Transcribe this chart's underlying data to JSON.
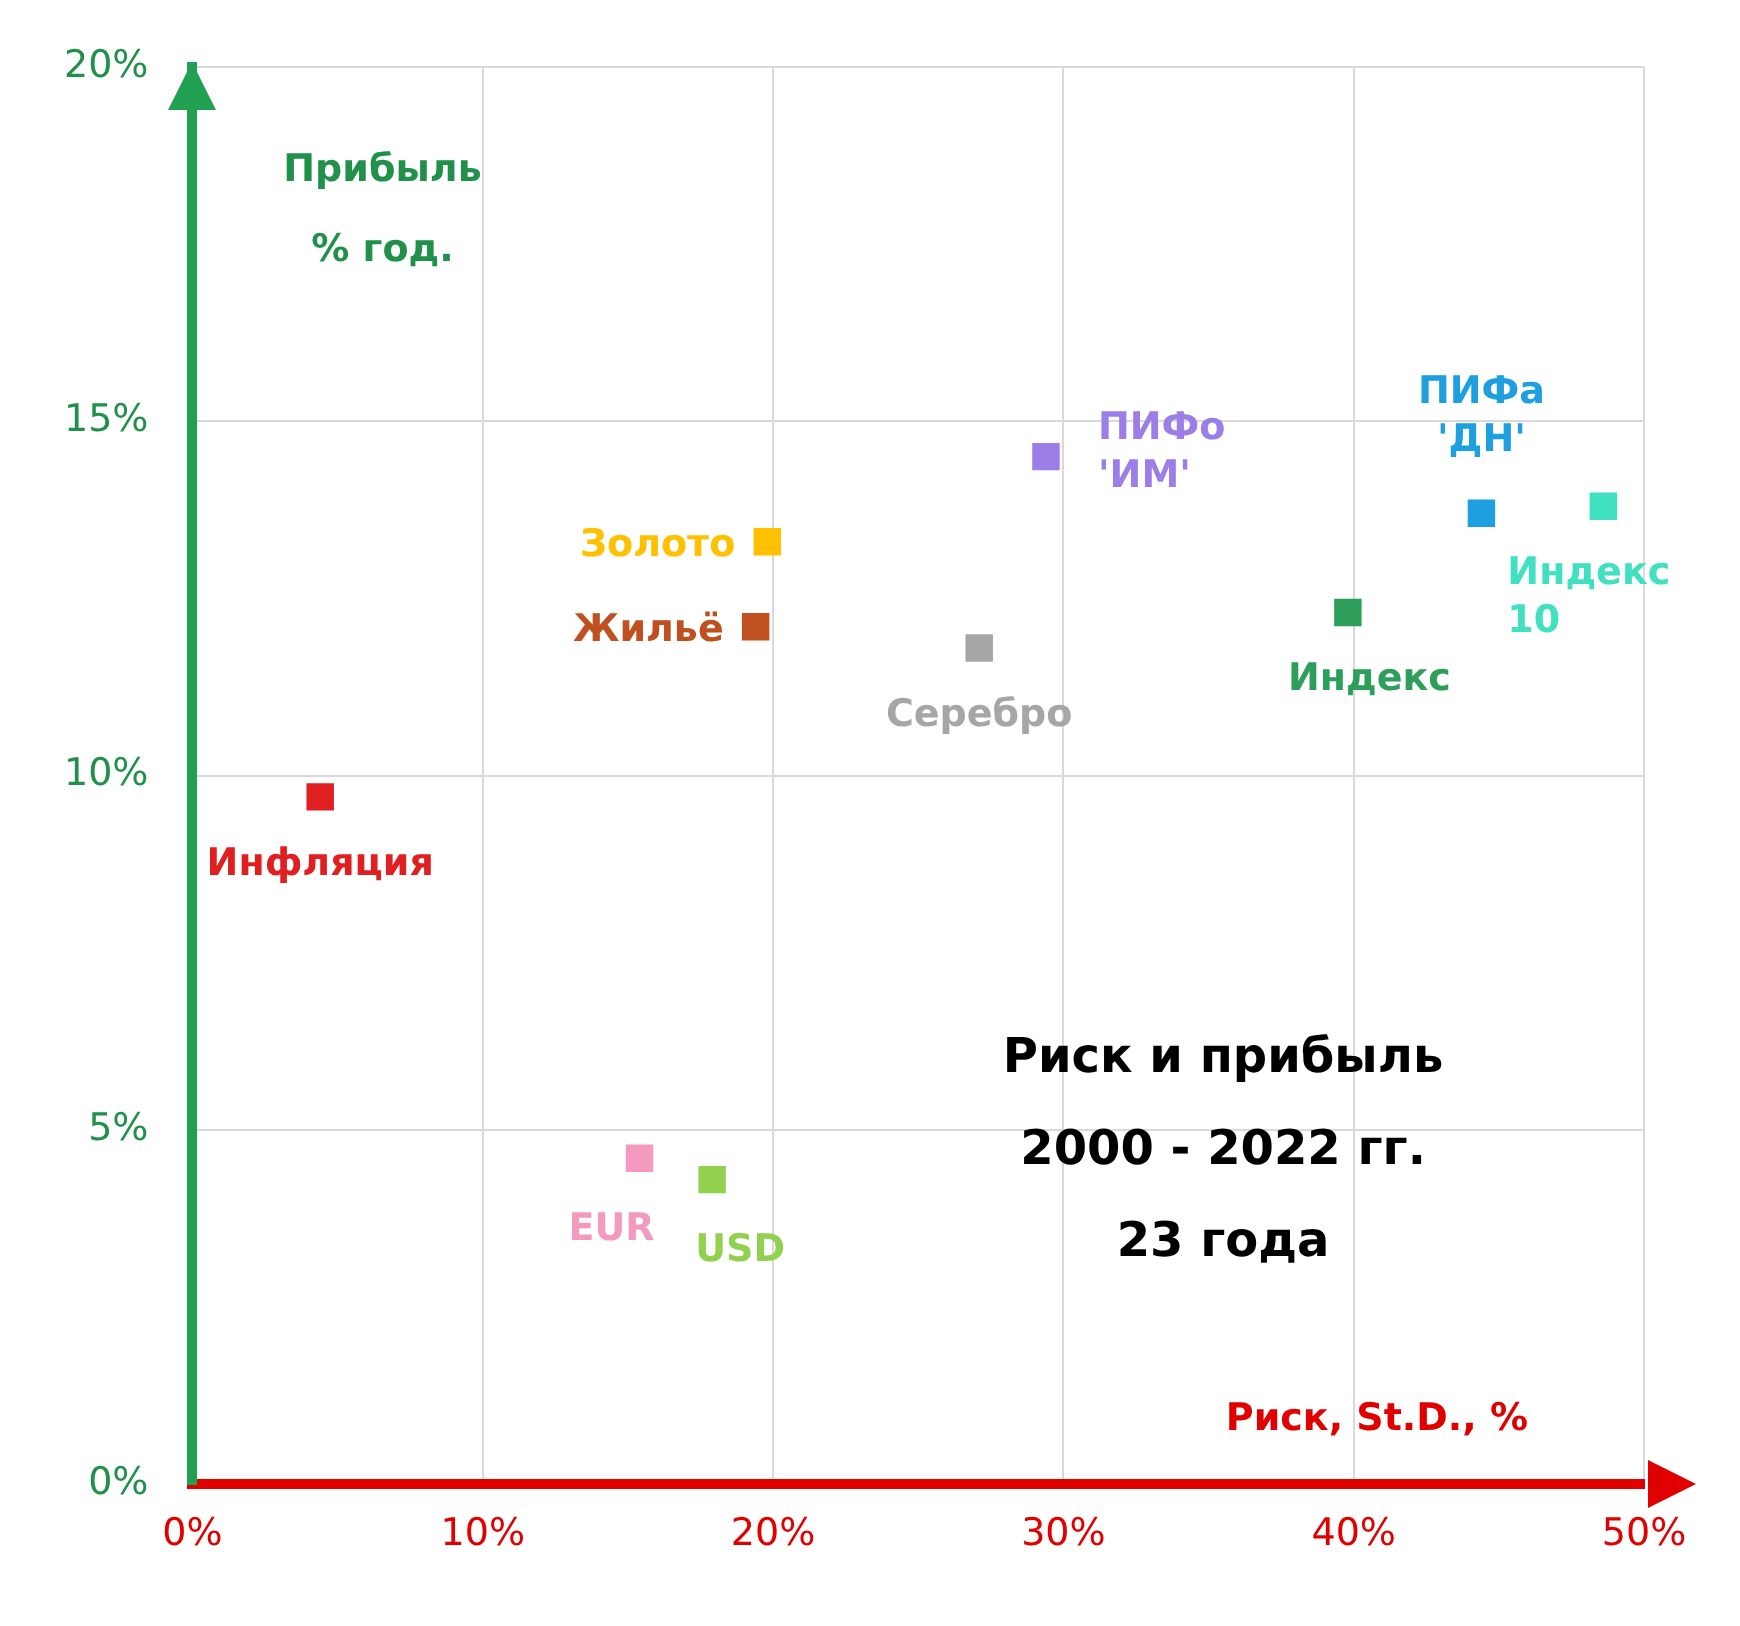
{
  "chart_data": {
    "type": "scatter",
    "xlabel": "Риск, St.D., %",
    "ylabel": "Прибыль % год.",
    "xlim": [
      0,
      50
    ],
    "xticks": [
      {
        "value": 0,
        "label": "0%"
      },
      {
        "value": 10,
        "label": "10%"
      },
      {
        "value": 20,
        "label": "20%"
      },
      {
        "value": 30,
        "label": "30%"
      },
      {
        "value": 40,
        "label": "40%"
      },
      {
        "value": 50,
        "label": "50%"
      }
    ],
    "ylim": [
      0,
      20
    ],
    "yticks": [
      {
        "value": 0,
        "label": "0%"
      },
      {
        "value": 5,
        "label": "5%"
      },
      {
        "value": 10,
        "label": "10%"
      },
      {
        "value": 15,
        "label": "15%"
      },
      {
        "value": 20,
        "label": "20%"
      }
    ],
    "grid": true,
    "legend": false,
    "marker": "square",
    "series": [
      {
        "name": "Инфляция",
        "color": "#e02020",
        "x": [
          4.4
        ],
        "values": [
          9.7
        ]
      },
      {
        "name": "EUR",
        "color": "#f49ac1",
        "x": [
          15.4
        ],
        "values": [
          4.6
        ]
      },
      {
        "name": "USD",
        "color": "#92d050",
        "x": [
          17.9
        ],
        "values": [
          4.3
        ]
      },
      {
        "name": "Жильё",
        "color": "#c0501f",
        "x": [
          19.4
        ],
        "values": [
          12.1
        ]
      },
      {
        "name": "Золото",
        "color": "#ffc000",
        "x": [
          19.8
        ],
        "values": [
          13.3
        ]
      },
      {
        "name": "Серебро",
        "color": "#a6a6a6",
        "x": [
          27.1
        ],
        "values": [
          11.8
        ]
      },
      {
        "name": "ПИФо 'ИМ'",
        "color": "#9b7ee8",
        "x": [
          29.4
        ],
        "values": [
          14.5
        ]
      },
      {
        "name": "Индекс",
        "color": "#2e9e5b",
        "x": [
          39.8
        ],
        "values": [
          12.3
        ]
      },
      {
        "name": "ПИФа 'ДН'",
        "color": "#1ea0e0",
        "x": [
          44.4
        ],
        "values": [
          13.7
        ]
      },
      {
        "name": "Индекс 10",
        "color": "#40e0c0",
        "x": [
          48.6
        ],
        "values": [
          13.8
        ]
      }
    ],
    "annotations": [
      "Риск и прибыль",
      "2000 - 2022 гг.",
      "23 года"
    ]
  }
}
